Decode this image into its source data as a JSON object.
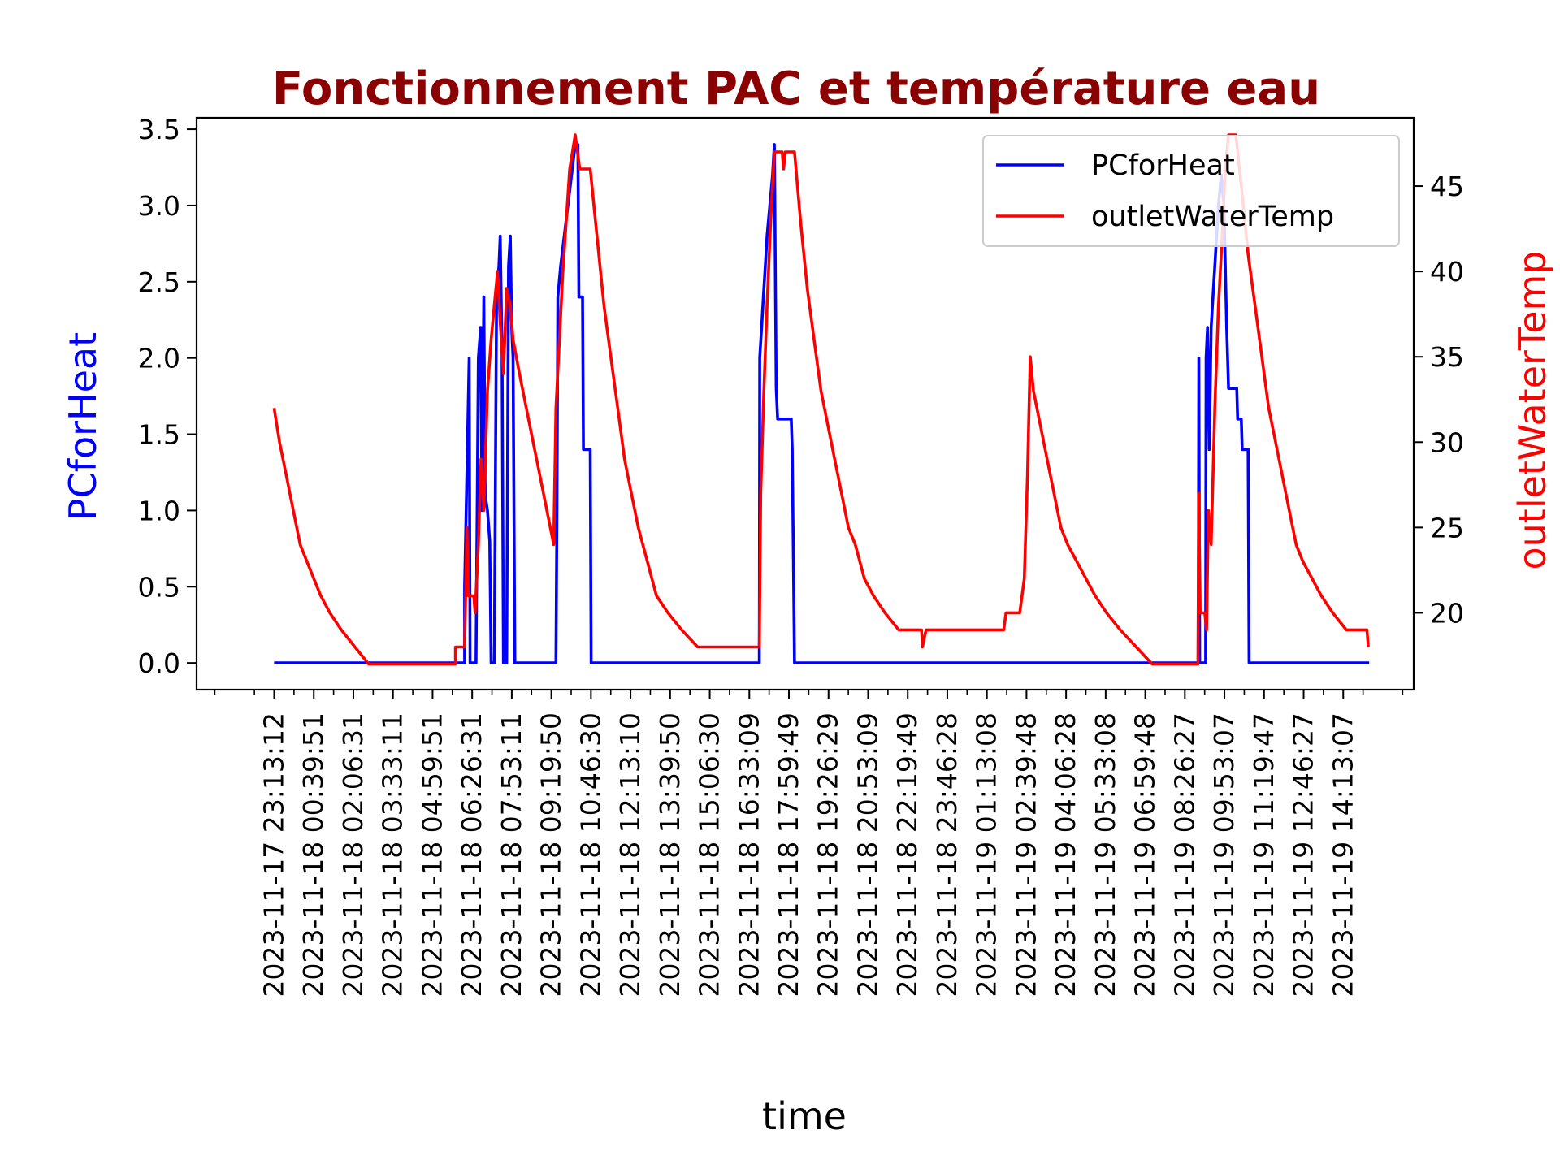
{
  "chart_data": {
    "type": "line",
    "title": "Fonctionnement PAC et température eau",
    "xlabel": "time",
    "ylabel_left": "PCforHeat",
    "ylabel_right": "outletWaterTemp",
    "ylim_left": [
      -0.175,
      3.575
    ],
    "ylim_right": [
      15.5,
      49
    ],
    "yticks_left": [
      "0.0",
      "0.5",
      "1.0",
      "1.5",
      "2.0",
      "2.5",
      "3.0",
      "3.5"
    ],
    "yticks_right": [
      "20",
      "25",
      "30",
      "35",
      "40",
      "45"
    ],
    "xticks": [
      "2023-11-17 23:13:12",
      "2023-11-18 00:39:51",
      "2023-11-18 02:06:31",
      "2023-11-18 03:33:11",
      "2023-11-18 04:59:51",
      "2023-11-18 06:26:31",
      "2023-11-18 07:53:11",
      "2023-11-18 09:19:50",
      "2023-11-18 10:46:30",
      "2023-11-18 12:13:10",
      "2023-11-18 13:39:50",
      "2023-11-18 15:06:30",
      "2023-11-18 16:33:09",
      "2023-11-18 17:59:49",
      "2023-11-18 19:26:29",
      "2023-11-18 20:53:09",
      "2023-11-18 22:19:49",
      "2023-11-18 23:46:28",
      "2023-11-19 01:13:08",
      "2023-11-19 02:39:48",
      "2023-11-19 04:06:28",
      "2023-11-19 05:33:08",
      "2023-11-19 06:59:48",
      "2023-11-19 08:26:27",
      "2023-11-19 09:53:07",
      "2023-11-19 11:19:47",
      "2023-11-19 12:46:27",
      "2023-11-19 14:13:07"
    ],
    "legend_position": "top-right",
    "grid": false,
    "series": [
      {
        "name": "PCforHeat",
        "axis": "left",
        "color": "#0000ff",
        "points": [
          [
            "2023-11-17 23:13",
            0
          ],
          [
            "2023-11-18 06:10",
            0
          ],
          [
            "2023-11-18 06:10",
            0.5
          ],
          [
            "2023-11-18 06:20",
            2.0
          ],
          [
            "2023-11-18 06:22",
            0
          ],
          [
            "2023-11-18 06:35",
            0
          ],
          [
            "2023-11-18 06:40",
            2.0
          ],
          [
            "2023-11-18 06:45",
            2.2
          ],
          [
            "2023-11-18 06:48",
            1.0
          ],
          [
            "2023-11-18 06:52",
            2.4
          ],
          [
            "2023-11-18 06:55",
            1.1
          ],
          [
            "2023-11-18 07:00",
            1.0
          ],
          [
            "2023-11-18 07:05",
            0.8
          ],
          [
            "2023-11-18 07:08",
            0
          ],
          [
            "2023-11-18 07:15",
            0
          ],
          [
            "2023-11-18 07:20",
            2.4
          ],
          [
            "2023-11-18 07:25",
            2.6
          ],
          [
            "2023-11-18 07:28",
            2.8
          ],
          [
            "2023-11-18 07:32",
            2.0
          ],
          [
            "2023-11-18 07:35",
            0
          ],
          [
            "2023-11-18 07:42",
            0
          ],
          [
            "2023-11-18 07:46",
            2.6
          ],
          [
            "2023-11-18 07:50",
            2.8
          ],
          [
            "2023-11-18 07:53",
            2.2
          ],
          [
            "2023-11-18 07:56",
            2.0
          ],
          [
            "2023-11-18 08:00",
            0
          ],
          [
            "2023-11-18 09:30",
            0
          ],
          [
            "2023-11-18 09:32",
            1.0
          ],
          [
            "2023-11-18 09:34",
            2.4
          ],
          [
            "2023-11-18 09:40",
            2.6
          ],
          [
            "2023-11-18 09:48",
            2.8
          ],
          [
            "2023-11-18 09:56",
            3.0
          ],
          [
            "2023-11-18 10:04",
            3.2
          ],
          [
            "2023-11-18 10:12",
            3.4
          ],
          [
            "2023-11-18 10:18",
            3.4
          ],
          [
            "2023-11-18 10:20",
            2.4
          ],
          [
            "2023-11-18 10:28",
            2.4
          ],
          [
            "2023-11-18 10:30",
            1.4
          ],
          [
            "2023-11-18 10:45",
            1.4
          ],
          [
            "2023-11-18 10:47",
            0
          ],
          [
            "2023-11-18 16:55",
            0
          ],
          [
            "2023-11-18 16:56",
            2.0
          ],
          [
            "2023-11-18 17:00",
            2.2
          ],
          [
            "2023-11-18 17:04",
            2.4
          ],
          [
            "2023-11-18 17:08",
            2.6
          ],
          [
            "2023-11-18 17:12",
            2.8
          ],
          [
            "2023-11-18 17:18",
            3.0
          ],
          [
            "2023-11-18 17:24",
            3.2
          ],
          [
            "2023-11-18 17:28",
            3.4
          ],
          [
            "2023-11-18 17:32",
            1.8
          ],
          [
            "2023-11-18 17:35",
            1.6
          ],
          [
            "2023-11-18 18:05",
            1.6
          ],
          [
            "2023-11-18 18:07",
            1.4
          ],
          [
            "2023-11-18 18:12",
            0
          ],
          [
            "2023-11-19 08:56",
            0
          ],
          [
            "2023-11-19 08:57",
            2.0
          ],
          [
            "2023-11-19 08:59",
            0
          ],
          [
            "2023-11-19 09:12",
            0
          ],
          [
            "2023-11-19 09:13",
            2.0
          ],
          [
            "2023-11-19 09:16",
            2.2
          ],
          [
            "2023-11-19 09:20",
            1.4
          ],
          [
            "2023-11-19 09:24",
            2.2
          ],
          [
            "2023-11-19 09:28",
            2.4
          ],
          [
            "2023-11-19 09:32",
            2.6
          ],
          [
            "2023-11-19 09:36",
            2.8
          ],
          [
            "2023-11-19 09:40",
            3.0
          ],
          [
            "2023-11-19 09:46",
            3.2
          ],
          [
            "2023-11-19 09:52",
            3.0
          ],
          [
            "2023-11-19 09:58",
            2.2
          ],
          [
            "2023-11-19 10:02",
            1.8
          ],
          [
            "2023-11-19 10:20",
            1.8
          ],
          [
            "2023-11-19 10:22",
            1.6
          ],
          [
            "2023-11-19 10:30",
            1.6
          ],
          [
            "2023-11-19 10:32",
            1.4
          ],
          [
            "2023-11-19 10:45",
            1.4
          ],
          [
            "2023-11-19 10:47",
            0
          ],
          [
            "2023-11-19 15:10",
            0
          ]
        ]
      },
      {
        "name": "outletWaterTemp",
        "axis": "right",
        "color": "#ff0000",
        "points": [
          [
            "2023-11-17 23:13",
            32
          ],
          [
            "2023-11-17 23:25",
            30
          ],
          [
            "2023-11-17 23:40",
            28
          ],
          [
            "2023-11-17 23:55",
            26
          ],
          [
            "2023-11-18 00:10",
            24
          ],
          [
            "2023-11-18 00:25",
            23
          ],
          [
            "2023-11-18 00:40",
            22
          ],
          [
            "2023-11-18 00:55",
            21
          ],
          [
            "2023-11-18 01:15",
            20
          ],
          [
            "2023-11-18 01:40",
            19
          ],
          [
            "2023-11-18 02:10",
            18
          ],
          [
            "2023-11-18 02:40",
            17
          ],
          [
            "2023-11-18 05:50",
            17
          ],
          [
            "2023-11-18 05:50",
            18
          ],
          [
            "2023-11-18 06:10",
            18
          ],
          [
            "2023-11-18 06:15",
            25
          ],
          [
            "2023-11-18 06:18",
            21
          ],
          [
            "2023-11-18 06:30",
            21
          ],
          [
            "2023-11-18 06:33",
            20
          ],
          [
            "2023-11-18 06:40",
            24
          ],
          [
            "2023-11-18 06:46",
            29
          ],
          [
            "2023-11-18 06:52",
            26
          ],
          [
            "2023-11-18 07:00",
            33
          ],
          [
            "2023-11-18 07:08",
            36
          ],
          [
            "2023-11-18 07:15",
            38
          ],
          [
            "2023-11-18 07:22",
            40
          ],
          [
            "2023-11-18 07:28",
            37
          ],
          [
            "2023-11-18 07:35",
            34
          ],
          [
            "2023-11-18 07:42",
            39
          ],
          [
            "2023-11-18 07:50",
            38
          ],
          [
            "2023-11-18 07:56",
            36
          ],
          [
            "2023-11-18 08:10",
            34
          ],
          [
            "2023-11-18 08:25",
            32
          ],
          [
            "2023-11-18 08:40",
            30
          ],
          [
            "2023-11-18 08:55",
            28
          ],
          [
            "2023-11-18 09:10",
            26
          ],
          [
            "2023-11-18 09:25",
            24
          ],
          [
            "2023-11-18 09:30",
            32
          ],
          [
            "2023-11-18 09:45",
            40
          ],
          [
            "2023-11-18 10:00",
            46
          ],
          [
            "2023-11-18 10:12",
            48
          ],
          [
            "2023-11-18 10:22",
            46
          ],
          [
            "2023-11-18 10:45",
            46
          ],
          [
            "2023-11-18 11:00",
            42
          ],
          [
            "2023-11-18 11:15",
            38
          ],
          [
            "2023-11-18 11:30",
            35
          ],
          [
            "2023-11-18 11:45",
            32
          ],
          [
            "2023-11-18 12:00",
            29
          ],
          [
            "2023-11-18 12:15",
            27
          ],
          [
            "2023-11-18 12:30",
            25
          ],
          [
            "2023-11-18 12:50",
            23
          ],
          [
            "2023-11-18 13:10",
            21
          ],
          [
            "2023-11-18 13:35",
            20
          ],
          [
            "2023-11-18 14:05",
            19
          ],
          [
            "2023-11-18 14:40",
            18
          ],
          [
            "2023-11-18 16:55",
            18
          ],
          [
            "2023-11-18 16:58",
            27
          ],
          [
            "2023-11-18 17:05",
            33
          ],
          [
            "2023-11-18 17:12",
            38
          ],
          [
            "2023-11-18 17:20",
            43
          ],
          [
            "2023-11-18 17:28",
            47
          ],
          [
            "2023-11-18 17:45",
            47
          ],
          [
            "2023-11-18 17:48",
            46
          ],
          [
            "2023-11-18 17:52",
            47
          ],
          [
            "2023-11-18 18:12",
            47
          ],
          [
            "2023-11-18 18:25",
            43
          ],
          [
            "2023-11-18 18:40",
            39
          ],
          [
            "2023-11-18 18:55",
            36
          ],
          [
            "2023-11-18 19:10",
            33
          ],
          [
            "2023-11-18 19:25",
            31
          ],
          [
            "2023-11-18 19:40",
            29
          ],
          [
            "2023-11-18 19:55",
            27
          ],
          [
            "2023-11-18 20:10",
            25
          ],
          [
            "2023-11-18 20:25",
            24
          ],
          [
            "2023-11-18 20:45",
            22
          ],
          [
            "2023-11-18 21:05",
            21
          ],
          [
            "2023-11-18 21:30",
            20
          ],
          [
            "2023-11-18 22:00",
            19
          ],
          [
            "2023-11-18 22:50",
            19
          ],
          [
            "2023-11-18 22:52",
            18
          ],
          [
            "2023-11-18 23:00",
            19
          ],
          [
            "2023-11-19 01:50",
            19
          ],
          [
            "2023-11-19 01:55",
            20
          ],
          [
            "2023-11-19 02:25",
            20
          ],
          [
            "2023-11-19 02:35",
            22
          ],
          [
            "2023-11-19 02:42",
            28
          ],
          [
            "2023-11-19 02:48",
            35
          ],
          [
            "2023-11-19 02:55",
            33
          ],
          [
            "2023-11-19 03:10",
            31
          ],
          [
            "2023-11-19 03:25",
            29
          ],
          [
            "2023-11-19 03:40",
            27
          ],
          [
            "2023-11-19 03:55",
            25
          ],
          [
            "2023-11-19 04:10",
            24
          ],
          [
            "2023-11-19 04:30",
            23
          ],
          [
            "2023-11-19 04:50",
            22
          ],
          [
            "2023-11-19 05:10",
            21
          ],
          [
            "2023-11-19 05:35",
            20
          ],
          [
            "2023-11-19 06:05",
            19
          ],
          [
            "2023-11-19 06:40",
            18
          ],
          [
            "2023-11-19 07:15",
            17
          ],
          [
            "2023-11-19 08:55",
            17
          ],
          [
            "2023-11-19 08:57",
            27
          ],
          [
            "2023-11-19 09:00",
            20
          ],
          [
            "2023-11-19 09:10",
            20
          ],
          [
            "2023-11-19 09:14",
            19
          ],
          [
            "2023-11-19 09:18",
            26
          ],
          [
            "2023-11-19 09:24",
            24
          ],
          [
            "2023-11-19 09:32",
            32
          ],
          [
            "2023-11-19 09:40",
            38
          ],
          [
            "2023-11-19 09:48",
            42
          ],
          [
            "2023-11-19 09:55",
            46
          ],
          [
            "2023-11-19 10:02",
            48
          ],
          [
            "2023-11-19 10:18",
            48
          ],
          [
            "2023-11-19 10:30",
            45
          ],
          [
            "2023-11-19 10:45",
            41
          ],
          [
            "2023-11-19 11:00",
            38
          ],
          [
            "2023-11-19 11:15",
            35
          ],
          [
            "2023-11-19 11:30",
            32
          ],
          [
            "2023-11-19 11:45",
            30
          ],
          [
            "2023-11-19 12:00",
            28
          ],
          [
            "2023-11-19 12:15",
            26
          ],
          [
            "2023-11-19 12:30",
            24
          ],
          [
            "2023-11-19 12:45",
            23
          ],
          [
            "2023-11-19 13:05",
            22
          ],
          [
            "2023-11-19 13:25",
            21
          ],
          [
            "2023-11-19 13:50",
            20
          ],
          [
            "2023-11-19 14:20",
            19
          ],
          [
            "2023-11-19 15:05",
            19
          ],
          [
            "2023-11-19 15:08",
            18
          ]
        ]
      }
    ]
  }
}
